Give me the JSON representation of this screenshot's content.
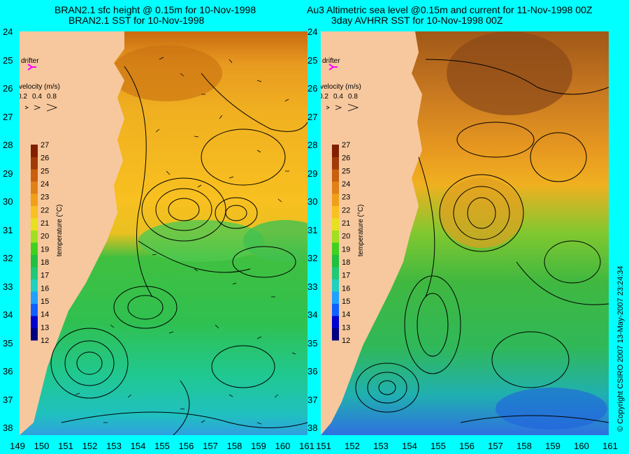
{
  "left_panel": {
    "title_line1": "BRAN2.1 sfc height @ 0.15m for 10-Nov-1998",
    "title_line2": "BRAN2.1 SST for 10-Nov-1998"
  },
  "right_panel": {
    "title_line1": "Au3 Altimetric sea level  @0.15m and current for 11-Nov-1998 00Z",
    "title_line2": "3day AVHRR SST for 10-Nov-1998 00Z"
  },
  "legend": {
    "drifter_label": "drifter",
    "velocity_title": "velocity (m/s)",
    "velocity_values": [
      "0.2",
      "0.4",
      "0.8"
    ],
    "colorbar_label": "temperature (°C)",
    "colorbar_ticks": [
      "27",
      "26",
      "25",
      "24",
      "23",
      "22",
      "21",
      "20",
      "19",
      "18",
      "17",
      "16",
      "15",
      "14",
      "13",
      "12"
    ]
  },
  "axes": {
    "lat_ticks": [
      "24",
      "25",
      "26",
      "27",
      "28",
      "29",
      "30",
      "31",
      "32",
      "33",
      "34",
      "35",
      "36",
      "37",
      "38"
    ],
    "lon_ticks_left": [
      "149",
      "150",
      "151",
      "152",
      "153",
      "154",
      "155",
      "156",
      "157",
      "158",
      "159",
      "160",
      "161"
    ],
    "lon_ticks_right": [
      "151",
      "152",
      "153",
      "154",
      "155",
      "156",
      "157",
      "158",
      "159",
      "160",
      "161"
    ]
  },
  "copyright": "© Copyright CSIRO 2007   13-May-2007 23:24:34",
  "colors": {
    "background": "#00ffff",
    "land": "#f7c89e",
    "drifter": "#ff00ff",
    "sst_scale": [
      "#000080",
      "#0000d0",
      "#1060ff",
      "#20a0ff",
      "#20d0c0",
      "#20c878",
      "#20c040",
      "#40d020",
      "#a0e020",
      "#e8e020",
      "#f8c020",
      "#f0a018",
      "#e08018",
      "#c86010",
      "#a03a08",
      "#802000"
    ]
  }
}
